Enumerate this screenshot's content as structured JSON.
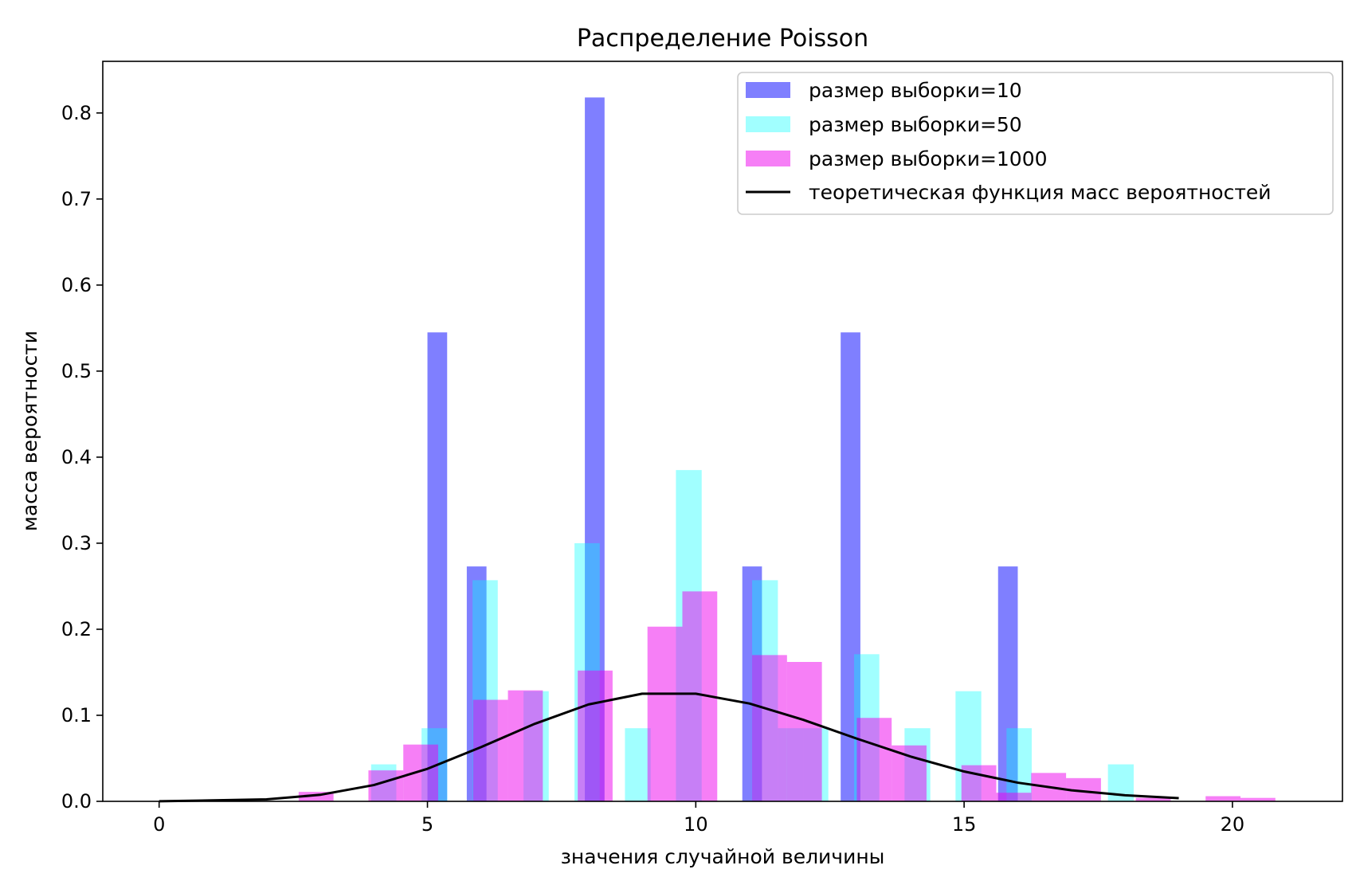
{
  "chart_data": {
    "type": "bar",
    "title": "Распределение Poisson",
    "xlabel": "значения случайной величины",
    "ylabel": "масса вероятности",
    "xlim": [
      -1.05,
      22.05
    ],
    "ylim": [
      0,
      0.86
    ],
    "xticks": [
      "0",
      "5",
      "10",
      "15",
      "20"
    ],
    "yticks": [
      "0.0",
      "0.1",
      "0.2",
      "0.3",
      "0.4",
      "0.5",
      "0.6",
      "0.7",
      "0.8"
    ],
    "grid": false,
    "legend": {
      "position": "top-right"
    },
    "series": [
      {
        "name": "размер выборки=10",
        "type": "histogram",
        "color": "#0000ff",
        "opacity": 0.5,
        "bins": [
          {
            "x0": 5.0,
            "x1": 5.367,
            "value": 0.545
          },
          {
            "x0": 5.733,
            "x1": 6.1,
            "value": 0.273
          },
          {
            "x0": 7.933,
            "x1": 8.3,
            "value": 0.818
          },
          {
            "x0": 10.867,
            "x1": 11.233,
            "value": 0.273
          },
          {
            "x0": 12.7,
            "x1": 13.067,
            "value": 0.545
          },
          {
            "x0": 15.633,
            "x1": 16.0,
            "value": 0.273
          }
        ]
      },
      {
        "name": "размер выборки=50",
        "type": "histogram",
        "color": "#00ffff",
        "opacity": 0.37,
        "bins": [
          {
            "x0": 3.95,
            "x1": 4.42,
            "value": 0.043
          },
          {
            "x0": 4.89,
            "x1": 5.37,
            "value": 0.085
          },
          {
            "x0": 5.84,
            "x1": 6.31,
            "value": 0.257
          },
          {
            "x0": 6.79,
            "x1": 7.26,
            "value": 0.128
          },
          {
            "x0": 7.74,
            "x1": 8.21,
            "value": 0.3
          },
          {
            "x0": 8.68,
            "x1": 9.16,
            "value": 0.085
          },
          {
            "x0": 9.63,
            "x1": 10.11,
            "value": 0.385
          },
          {
            "x0": 11.05,
            "x1": 11.53,
            "value": 0.257
          },
          {
            "x0": 11.53,
            "x1": 12.0,
            "value": 0.085
          },
          {
            "x0": 12.0,
            "x1": 12.47,
            "value": 0.085
          },
          {
            "x0": 12.95,
            "x1": 13.42,
            "value": 0.171
          },
          {
            "x0": 13.89,
            "x1": 14.37,
            "value": 0.085
          },
          {
            "x0": 14.84,
            "x1": 15.32,
            "value": 0.128
          },
          {
            "x0": 15.79,
            "x1": 16.26,
            "value": 0.085
          },
          {
            "x0": 17.68,
            "x1": 18.16,
            "value": 0.043
          }
        ]
      },
      {
        "name": "размер выборки=1000",
        "type": "histogram",
        "color": "#ee00ee",
        "opacity": 0.5,
        "bins": [
          {
            "x0": 2.6,
            "x1": 3.25,
            "value": 0.011
          },
          {
            "x0": 3.9,
            "x1": 4.55,
            "value": 0.036
          },
          {
            "x0": 4.55,
            "x1": 5.2,
            "value": 0.066
          },
          {
            "x0": 5.85,
            "x1": 6.5,
            "value": 0.118
          },
          {
            "x0": 6.5,
            "x1": 7.15,
            "value": 0.129
          },
          {
            "x0": 7.8,
            "x1": 8.45,
            "value": 0.152
          },
          {
            "x0": 9.1,
            "x1": 9.75,
            "value": 0.203
          },
          {
            "x0": 9.75,
            "x1": 10.4,
            "value": 0.244
          },
          {
            "x0": 11.05,
            "x1": 11.7,
            "value": 0.17
          },
          {
            "x0": 11.7,
            "x1": 12.35,
            "value": 0.162
          },
          {
            "x0": 13.0,
            "x1": 13.65,
            "value": 0.097
          },
          {
            "x0": 13.65,
            "x1": 14.3,
            "value": 0.065
          },
          {
            "x0": 14.95,
            "x1": 15.6,
            "value": 0.042
          },
          {
            "x0": 15.6,
            "x1": 16.25,
            "value": 0.01
          },
          {
            "x0": 16.25,
            "x1": 16.9,
            "value": 0.033
          },
          {
            "x0": 16.9,
            "x1": 17.55,
            "value": 0.027
          },
          {
            "x0": 18.2,
            "x1": 18.85,
            "value": 0.004
          },
          {
            "x0": 19.5,
            "x1": 20.15,
            "value": 0.006
          },
          {
            "x0": 20.15,
            "x1": 20.8,
            "value": 0.004
          }
        ]
      },
      {
        "name": "теоретическая функция масс вероятностей",
        "type": "line",
        "color": "#000000",
        "x": [
          0,
          1,
          2,
          3,
          4,
          5,
          6,
          7,
          8,
          9,
          10,
          11,
          12,
          13,
          14,
          15,
          16,
          17,
          18,
          19
        ],
        "values": [
          0.0001,
          0.0011,
          0.0023,
          0.0076,
          0.0189,
          0.0378,
          0.0631,
          0.0901,
          0.1126,
          0.1251,
          0.1251,
          0.1137,
          0.0948,
          0.0729,
          0.0521,
          0.0347,
          0.0217,
          0.0128,
          0.0071,
          0.0037
        ]
      }
    ]
  }
}
